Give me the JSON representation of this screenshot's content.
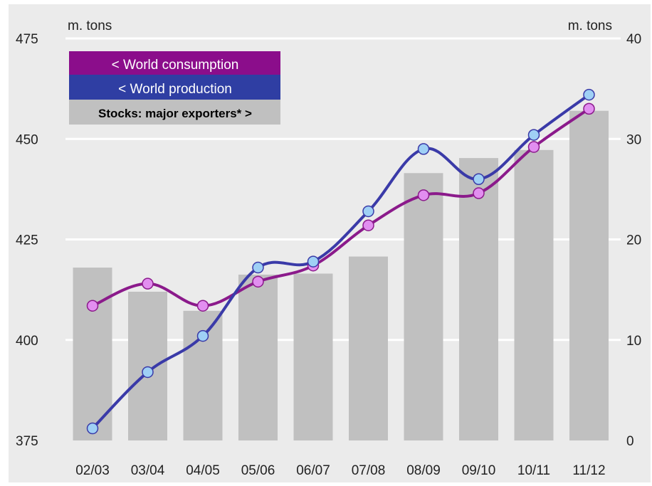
{
  "chart_data": {
    "type": "bar",
    "categories": [
      "02/03",
      "03/04",
      "04/05",
      "05/06",
      "06/07",
      "07/08",
      "08/09",
      "09/10",
      "10/11",
      "11/12"
    ],
    "left_axis": {
      "label": "m. tons",
      "ylim": [
        375,
        475
      ],
      "ticks": [
        "375",
        "400",
        "425",
        "450",
        "475"
      ]
    },
    "right_axis": {
      "label": "m. tons",
      "ylim": [
        0,
        40
      ],
      "ticks": [
        "0",
        "10",
        "20",
        "30",
        "40"
      ]
    },
    "series": [
      {
        "name": "Stocks: major exporters*",
        "legend_label": "Stocks: major exporters* >",
        "type": "bar",
        "axis": "right",
        "color": "#c0c0c0",
        "values": [
          17.2,
          14.8,
          12.9,
          16.5,
          16.6,
          18.3,
          26.6,
          28.1,
          28.9,
          32.8
        ]
      },
      {
        "name": "World consumption",
        "legend_label": "< World consumption",
        "type": "line",
        "axis": "left",
        "color": "#8b1a8b",
        "marker_color": "#e28ef0",
        "values": [
          408.5,
          414,
          408.5,
          414.5,
          418.5,
          428.5,
          436,
          436.5,
          448,
          457.5
        ]
      },
      {
        "name": "World production",
        "legend_label": "< World production",
        "type": "line",
        "axis": "left",
        "color": "#3a3aa8",
        "marker_color": "#9fd0f5",
        "values": [
          378,
          392,
          401,
          418,
          419.5,
          432,
          447.5,
          440,
          451,
          461
        ]
      }
    ],
    "grid": true,
    "legend_position": "top-left",
    "background": "#ebebeb"
  }
}
